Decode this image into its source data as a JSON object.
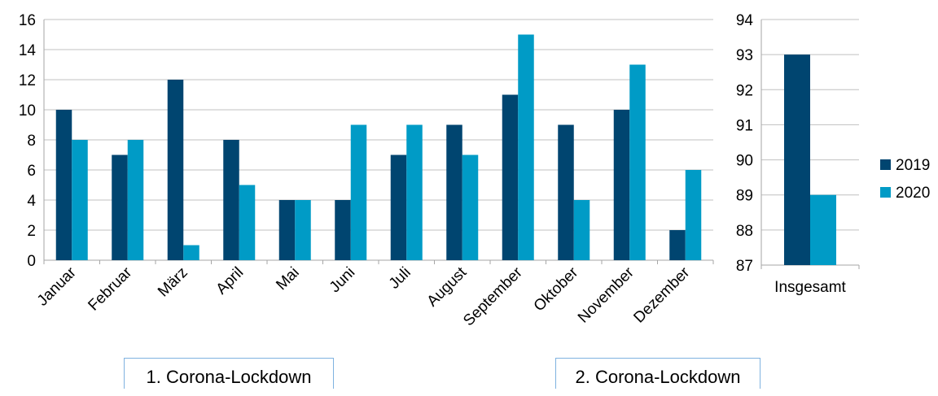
{
  "colors": {
    "series_2019": "#004570",
    "series_2020": "#009bc6",
    "grid": "#c0c0c0",
    "axis": "#a6a6a6"
  },
  "annotations": [
    "1. Corona-Lockdown",
    "2. Corona-Lockdown"
  ],
  "chart_data": [
    {
      "type": "bar",
      "categories": [
        "Januar",
        "Februar",
        "März",
        "April",
        "Mai",
        "Juni",
        "Juli",
        "August",
        "September",
        "Oktober",
        "November",
        "Dezember"
      ],
      "series": [
        {
          "name": "2019",
          "values": [
            10,
            7,
            12,
            8,
            4,
            4,
            7,
            9,
            11,
            9,
            10,
            2
          ]
        },
        {
          "name": "2020",
          "values": [
            8,
            8,
            1,
            5,
            4,
            9,
            9,
            7,
            15,
            4,
            13,
            6
          ]
        }
      ],
      "ylim": [
        0,
        16
      ],
      "yticks": [
        0,
        2,
        4,
        6,
        8,
        10,
        12,
        14,
        16
      ],
      "grid": true
    },
    {
      "type": "bar",
      "categories": [
        "Insgesamt"
      ],
      "series": [
        {
          "name": "2019",
          "values": [
            93
          ]
        },
        {
          "name": "2020",
          "values": [
            89
          ]
        }
      ],
      "ylim": [
        87,
        94
      ],
      "yticks": [
        87,
        88,
        89,
        90,
        91,
        92,
        93,
        94
      ],
      "grid": true,
      "legend": "right"
    }
  ]
}
